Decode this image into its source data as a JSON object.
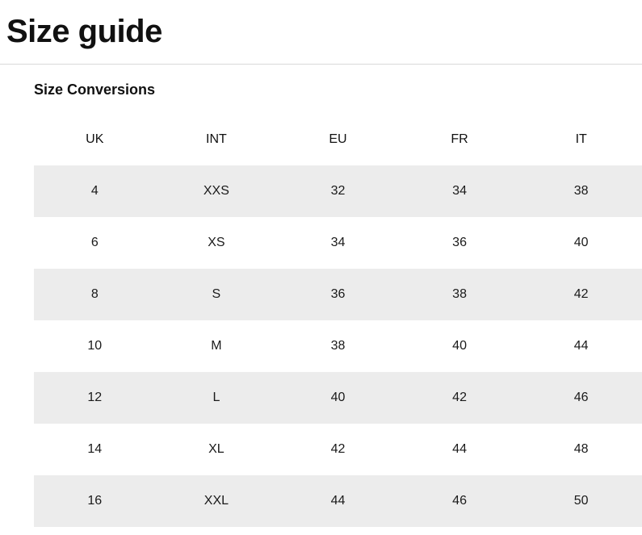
{
  "page": {
    "title": "Size guide"
  },
  "section": {
    "heading": "Size Conversions"
  },
  "table": {
    "columns": [
      "UK",
      "INT",
      "EU",
      "FR",
      "IT"
    ],
    "rows": [
      [
        "4",
        "XXS",
        "32",
        "34",
        "38"
      ],
      [
        "6",
        "XS",
        "34",
        "36",
        "40"
      ],
      [
        "8",
        "S",
        "36",
        "38",
        "42"
      ],
      [
        "10",
        "M",
        "38",
        "40",
        "44"
      ],
      [
        "12",
        "L",
        "40",
        "42",
        "46"
      ],
      [
        "14",
        "XL",
        "42",
        "44",
        "48"
      ],
      [
        "16",
        "XXL",
        "44",
        "46",
        "50"
      ]
    ]
  },
  "colors": {
    "row_alt_bg": "#ececec",
    "text": "#1a1a1a",
    "divider": "#d9d9d9",
    "background": "#ffffff"
  }
}
